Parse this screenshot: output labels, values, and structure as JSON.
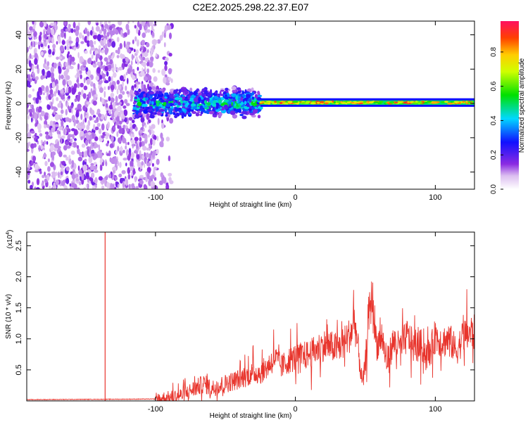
{
  "title": "C2E2.2025.298.22.37.E07",
  "chart_data": [
    {
      "type": "heatmap",
      "xlabel": "Height of straight line (km)",
      "ylabel": "Frequency (Hz)",
      "xlim": [
        -192,
        128
      ],
      "ylim": [
        -50,
        48
      ],
      "xticks": [
        -100,
        0,
        100
      ],
      "yticks": [
        40,
        20,
        0,
        -20,
        -40
      ],
      "grid": false,
      "colorbar": {
        "label": "Normalized spectral amplitude",
        "ticks": [
          0.0,
          0.2,
          0.4,
          0.6,
          0.8
        ],
        "range": [
          0,
          0.98
        ]
      },
      "regions": [
        {
          "name": "noise",
          "x": [
            -192,
            -100
          ],
          "freq": [
            -50,
            48
          ],
          "amplitude": 0.1
        },
        {
          "name": "broad signal",
          "x": [
            -115,
            -25
          ],
          "freq": [
            -10,
            8
          ],
          "amplitude": 0.45
        },
        {
          "name": "narrow carrier",
          "x": [
            -25,
            128
          ],
          "freq": [
            -1,
            2
          ],
          "amplitude": 0.9
        }
      ]
    },
    {
      "type": "line",
      "xlabel": "Height of straight line (km)",
      "ylabel": "SNR (10 * v/v)",
      "multiplier_label": "(x10",
      "multiplier_exponent": "4",
      "multiplier_suffix": ")",
      "xlim": [
        -192,
        128
      ],
      "ylim": [
        0,
        2.72
      ],
      "xticks": [
        -100,
        0,
        100
      ],
      "yticks": [
        0.5,
        1.0,
        1.5,
        2.0,
        2.5
      ],
      "grid": false,
      "spike": {
        "x": -136,
        "y_top": 2.72
      },
      "envelope": [
        [
          -192,
          0.02
        ],
        [
          -100,
          0.03
        ],
        [
          -90,
          0.05
        ],
        [
          -80,
          0.1
        ],
        [
          -72,
          0.2
        ],
        [
          -65,
          0.28
        ],
        [
          -60,
          0.2
        ],
        [
          -50,
          0.28
        ],
        [
          -40,
          0.35
        ],
        [
          -30,
          0.45
        ],
        [
          -25,
          0.45
        ],
        [
          -20,
          0.55
        ],
        [
          -15,
          0.7
        ],
        [
          -10,
          0.55
        ],
        [
          -5,
          0.65
        ],
        [
          0,
          0.7
        ],
        [
          10,
          0.75
        ],
        [
          20,
          0.9
        ],
        [
          30,
          0.85
        ],
        [
          35,
          0.95
        ],
        [
          40,
          1.1
        ],
        [
          42,
          1.35
        ],
        [
          45,
          0.8
        ],
        [
          48,
          0.25
        ],
        [
          50,
          0.6
        ],
        [
          52,
          1.3
        ],
        [
          55,
          1.7
        ],
        [
          58,
          0.9
        ],
        [
          62,
          1.05
        ],
        [
          65,
          0.6
        ],
        [
          70,
          0.95
        ],
        [
          75,
          0.85
        ],
        [
          80,
          1.05
        ],
        [
          85,
          0.85
        ],
        [
          90,
          0.9
        ],
        [
          95,
          0.7
        ],
        [
          100,
          1.05
        ],
        [
          105,
          0.95
        ],
        [
          110,
          1.0
        ],
        [
          115,
          0.8
        ],
        [
          120,
          1.05
        ],
        [
          125,
          1.1
        ],
        [
          128,
          1.1
        ]
      ]
    }
  ]
}
